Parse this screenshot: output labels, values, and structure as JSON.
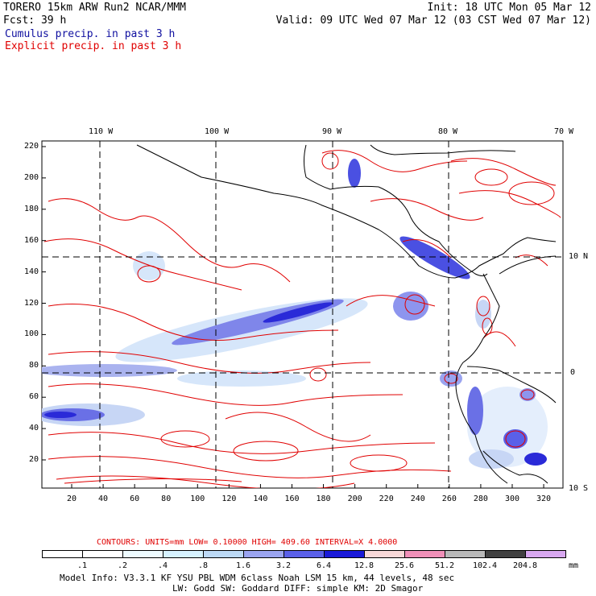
{
  "header": {
    "line1_left": "TORERO  15km ARW   Run2    NCAR/MMM",
    "line1_right": "Init: 18 UTC Mon 05 Mar 12",
    "line2_left": "Fcst:   39 h",
    "line2_right": "Valid: 09 UTC Wed 07 Mar 12 (03 CST Wed 07 Mar 12)",
    "line3": "Cumulus precip. in past 3 h",
    "line4": "Explicit precip. in past 3 h"
  },
  "map": {
    "top_lon_labels": [
      "110 W",
      "100 W",
      "90 W",
      "80 W",
      "70 W"
    ],
    "right_lat_labels": [
      "10 N",
      "0",
      "10 S"
    ],
    "y_ticks": [
      "220",
      "200",
      "180",
      "160",
      "140",
      "120",
      "100",
      "80",
      "60",
      "40",
      "20"
    ],
    "x_ticks": [
      "20",
      "40",
      "60",
      "80",
      "100",
      "120",
      "140",
      "160",
      "180",
      "200",
      "220",
      "240",
      "260",
      "280",
      "300",
      "320"
    ]
  },
  "contour_info": {
    "label": "CONTOURS:  UNITS=mm  LOW= 0.10000      HIGH=  409.60      INTERVAL=X  4.0000"
  },
  "colorbar": {
    "colors": [
      "#ffffff",
      "#ffffff",
      "#eefbff",
      "#d6f2ff",
      "#bcd9f5",
      "#9aa4f0",
      "#5a60e8",
      "#1a1ad8",
      "#f8d8d8",
      "#f090b8",
      "#b8b8b8",
      "#404040",
      "#d8a8f0"
    ],
    "labels": [
      ".1",
      ".2",
      ".4",
      ".8",
      "1.6",
      "3.2",
      "6.4",
      "12.8",
      "25.6",
      "51.2",
      "102.4",
      "204.8"
    ],
    "units": "mm"
  },
  "footer": {
    "line1": "Model Info: V3.3.1   KF     YSU PBL  WDM 6class  Noah LSM  15 km,   44 levels,   48 sec",
    "line2": "LW: Godd SW: Goddard DIFF: simple KM: 2D Smagor"
  }
}
